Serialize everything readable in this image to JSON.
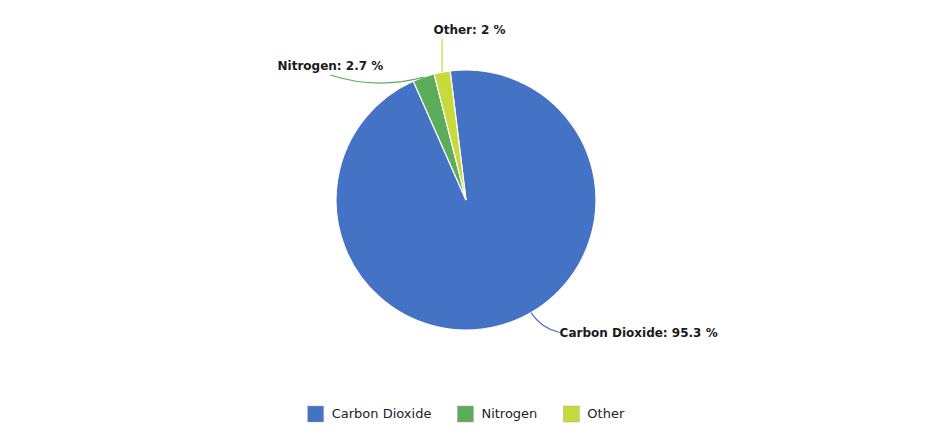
{
  "chart_data": {
    "type": "pie",
    "categories": [
      "Carbon Dioxide",
      "Nitrogen",
      "Other"
    ],
    "values": [
      95.3,
      2.7,
      2.0
    ],
    "colors": [
      "#4472C4",
      "#5BAD5B",
      "#C8D93A"
    ],
    "data_labels": true,
    "value_labels": [
      "Carbon Dioxide: 95.3 %",
      "Nitrogen: 2.7 %",
      "Other: 2 %"
    ],
    "legend": "bottom"
  }
}
